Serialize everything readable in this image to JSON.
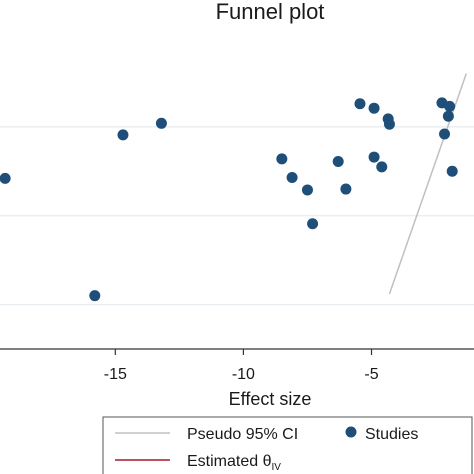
{
  "chart_data": {
    "type": "scatter",
    "title": "Funnel plot",
    "xlabel": "Effect size",
    "ylabel": "",
    "xlim": [
      -19.5,
      -1.0
    ],
    "ylim": [
      0,
      3.5
    ],
    "x_ticks": [
      -15,
      -10,
      -5
    ],
    "x_tick_labels": [
      "-15",
      "-10",
      "-5"
    ],
    "gridlines_y": [
      0.5,
      1.5,
      2.5
    ],
    "grid": true,
    "legend": {
      "placement": "bottom",
      "entries": [
        {
          "label": "Pseudo 95% CI",
          "kind": "line",
          "color": "#c0c0c0"
        },
        {
          "label": "Studies",
          "kind": "marker",
          "color": "#1f4e79"
        },
        {
          "label": "Estimated θ",
          "subscript": "IV",
          "kind": "line",
          "color": "#a31d2b"
        }
      ]
    },
    "series": [
      {
        "name": "Studies",
        "color": "#1f4e79",
        "points": [
          {
            "x": -19.3,
            "y": 1.92
          },
          {
            "x": -15.8,
            "y": 0.6
          },
          {
            "x": -14.7,
            "y": 2.41
          },
          {
            "x": -13.2,
            "y": 2.54
          },
          {
            "x": -8.5,
            "y": 2.14
          },
          {
            "x": -8.1,
            "y": 1.93
          },
          {
            "x": -7.5,
            "y": 1.79
          },
          {
            "x": -7.3,
            "y": 1.41
          },
          {
            "x": -6.3,
            "y": 2.11
          },
          {
            "x": -6.0,
            "y": 1.8
          },
          {
            "x": -5.45,
            "y": 2.76
          },
          {
            "x": -4.9,
            "y": 2.71
          },
          {
            "x": -4.9,
            "y": 2.16
          },
          {
            "x": -4.6,
            "y": 2.05
          },
          {
            "x": -4.35,
            "y": 2.59
          },
          {
            "x": -4.3,
            "y": 2.53
          },
          {
            "x": -2.25,
            "y": 2.77
          },
          {
            "x": -2.15,
            "y": 2.42
          },
          {
            "x": -2.0,
            "y": 2.62
          },
          {
            "x": -1.95,
            "y": 2.73
          },
          {
            "x": -1.85,
            "y": 2.0
          }
        ]
      },
      {
        "name": "Pseudo 95% CI",
        "color": "#c0c0c0",
        "line": [
          {
            "x": -4.3,
            "y": 0.62
          },
          {
            "x": -1.3,
            "y": 3.1
          }
        ]
      }
    ]
  }
}
